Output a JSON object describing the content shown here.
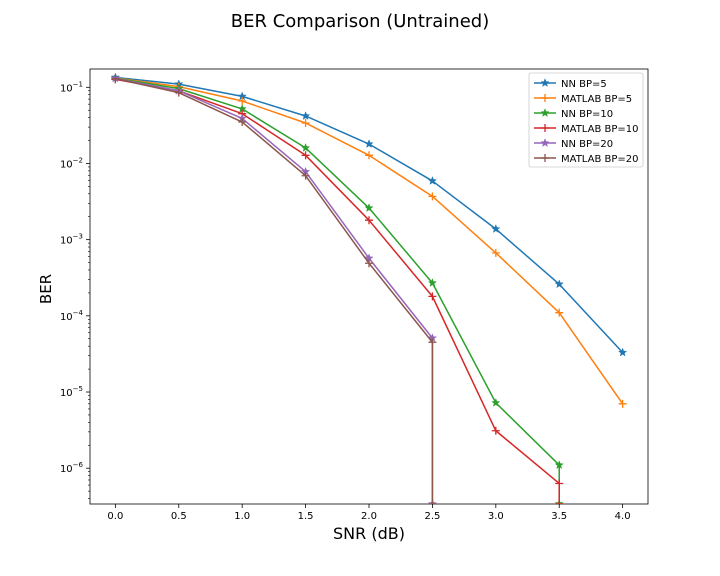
{
  "chart_data": {
    "type": "line",
    "title": "BER Comparison (Untrained)",
    "xlabel": "SNR (dB)",
    "ylabel": "BER",
    "yscale": "log",
    "xlim": [
      -0.2,
      4.2
    ],
    "ylim_log10": [
      -6.47,
      -0.76
    ],
    "x_ticks": [
      "0.0",
      "0.5",
      "1.0",
      "1.5",
      "2.0",
      "2.5",
      "3.0",
      "3.5",
      "4.0"
    ],
    "x_tick_values": [
      0.0,
      0.5,
      1.0,
      1.5,
      2.0,
      2.5,
      3.0,
      3.5,
      4.0
    ],
    "y_ticks": [
      {
        "base": "10",
        "exp": "−1",
        "value": -1
      },
      {
        "base": "10",
        "exp": "−2",
        "value": -2
      },
      {
        "base": "10",
        "exp": "−3",
        "value": -3
      },
      {
        "base": "10",
        "exp": "−4",
        "value": -4
      },
      {
        "base": "10",
        "exp": "−5",
        "value": -5
      },
      {
        "base": "10",
        "exp": "−6",
        "value": -6
      }
    ],
    "grid": false,
    "legend_position": "top-right",
    "series": [
      {
        "name": "NN BP=5",
        "color": "#1f77b4",
        "marker": "star",
        "x": [
          0.0,
          0.5,
          1.0,
          1.5,
          2.0,
          2.5,
          3.0,
          3.5,
          4.0
        ],
        "y": [
          0.135,
          0.11,
          0.076,
          0.042,
          0.018,
          0.0059,
          0.00138,
          0.00026,
          3.3e-05
        ]
      },
      {
        "name": "MATLAB BP=5",
        "color": "#ff7f0e",
        "marker": "plus",
        "x": [
          0.0,
          0.5,
          1.0,
          1.5,
          2.0,
          2.5,
          3.0,
          3.5,
          4.0
        ],
        "y": [
          0.133,
          0.102,
          0.066,
          0.034,
          0.0128,
          0.0037,
          0.00067,
          0.00011,
          7e-06
        ]
      },
      {
        "name": "NN BP=10",
        "color": "#2ca02c",
        "marker": "star",
        "x": [
          0.0,
          0.5,
          1.0,
          1.5,
          2.0,
          2.5,
          3.0,
          3.5,
          3.5
        ],
        "y": [
          0.132,
          0.096,
          0.052,
          0.016,
          0.0026,
          0.00027,
          7.2e-06,
          1.1e-06,
          3.4e-07
        ]
      },
      {
        "name": "MATLAB BP=10",
        "color": "#d62728",
        "marker": "plus",
        "x": [
          0.0,
          0.5,
          1.0,
          1.5,
          2.0,
          2.5,
          3.0,
          3.5,
          3.5
        ],
        "y": [
          0.127,
          0.09,
          0.045,
          0.0128,
          0.0018,
          0.00018,
          3.1e-06,
          6.3e-07,
          3.4e-07
        ]
      },
      {
        "name": "NN BP=20",
        "color": "#9467bd",
        "marker": "star",
        "x": [
          0.0,
          0.5,
          1.0,
          1.5,
          2.0,
          2.5,
          2.5
        ],
        "y": [
          0.131,
          0.09,
          0.039,
          0.0078,
          0.00057,
          5.1e-05,
          3.4e-07
        ]
      },
      {
        "name": "MATLAB BP=20",
        "color": "#8c564b",
        "marker": "plus",
        "x": [
          0.0,
          0.5,
          1.0,
          1.5,
          2.0,
          2.5,
          2.5
        ],
        "y": [
          0.13,
          0.085,
          0.035,
          0.0069,
          0.00049,
          4.5e-05,
          3.4e-07
        ]
      }
    ]
  }
}
